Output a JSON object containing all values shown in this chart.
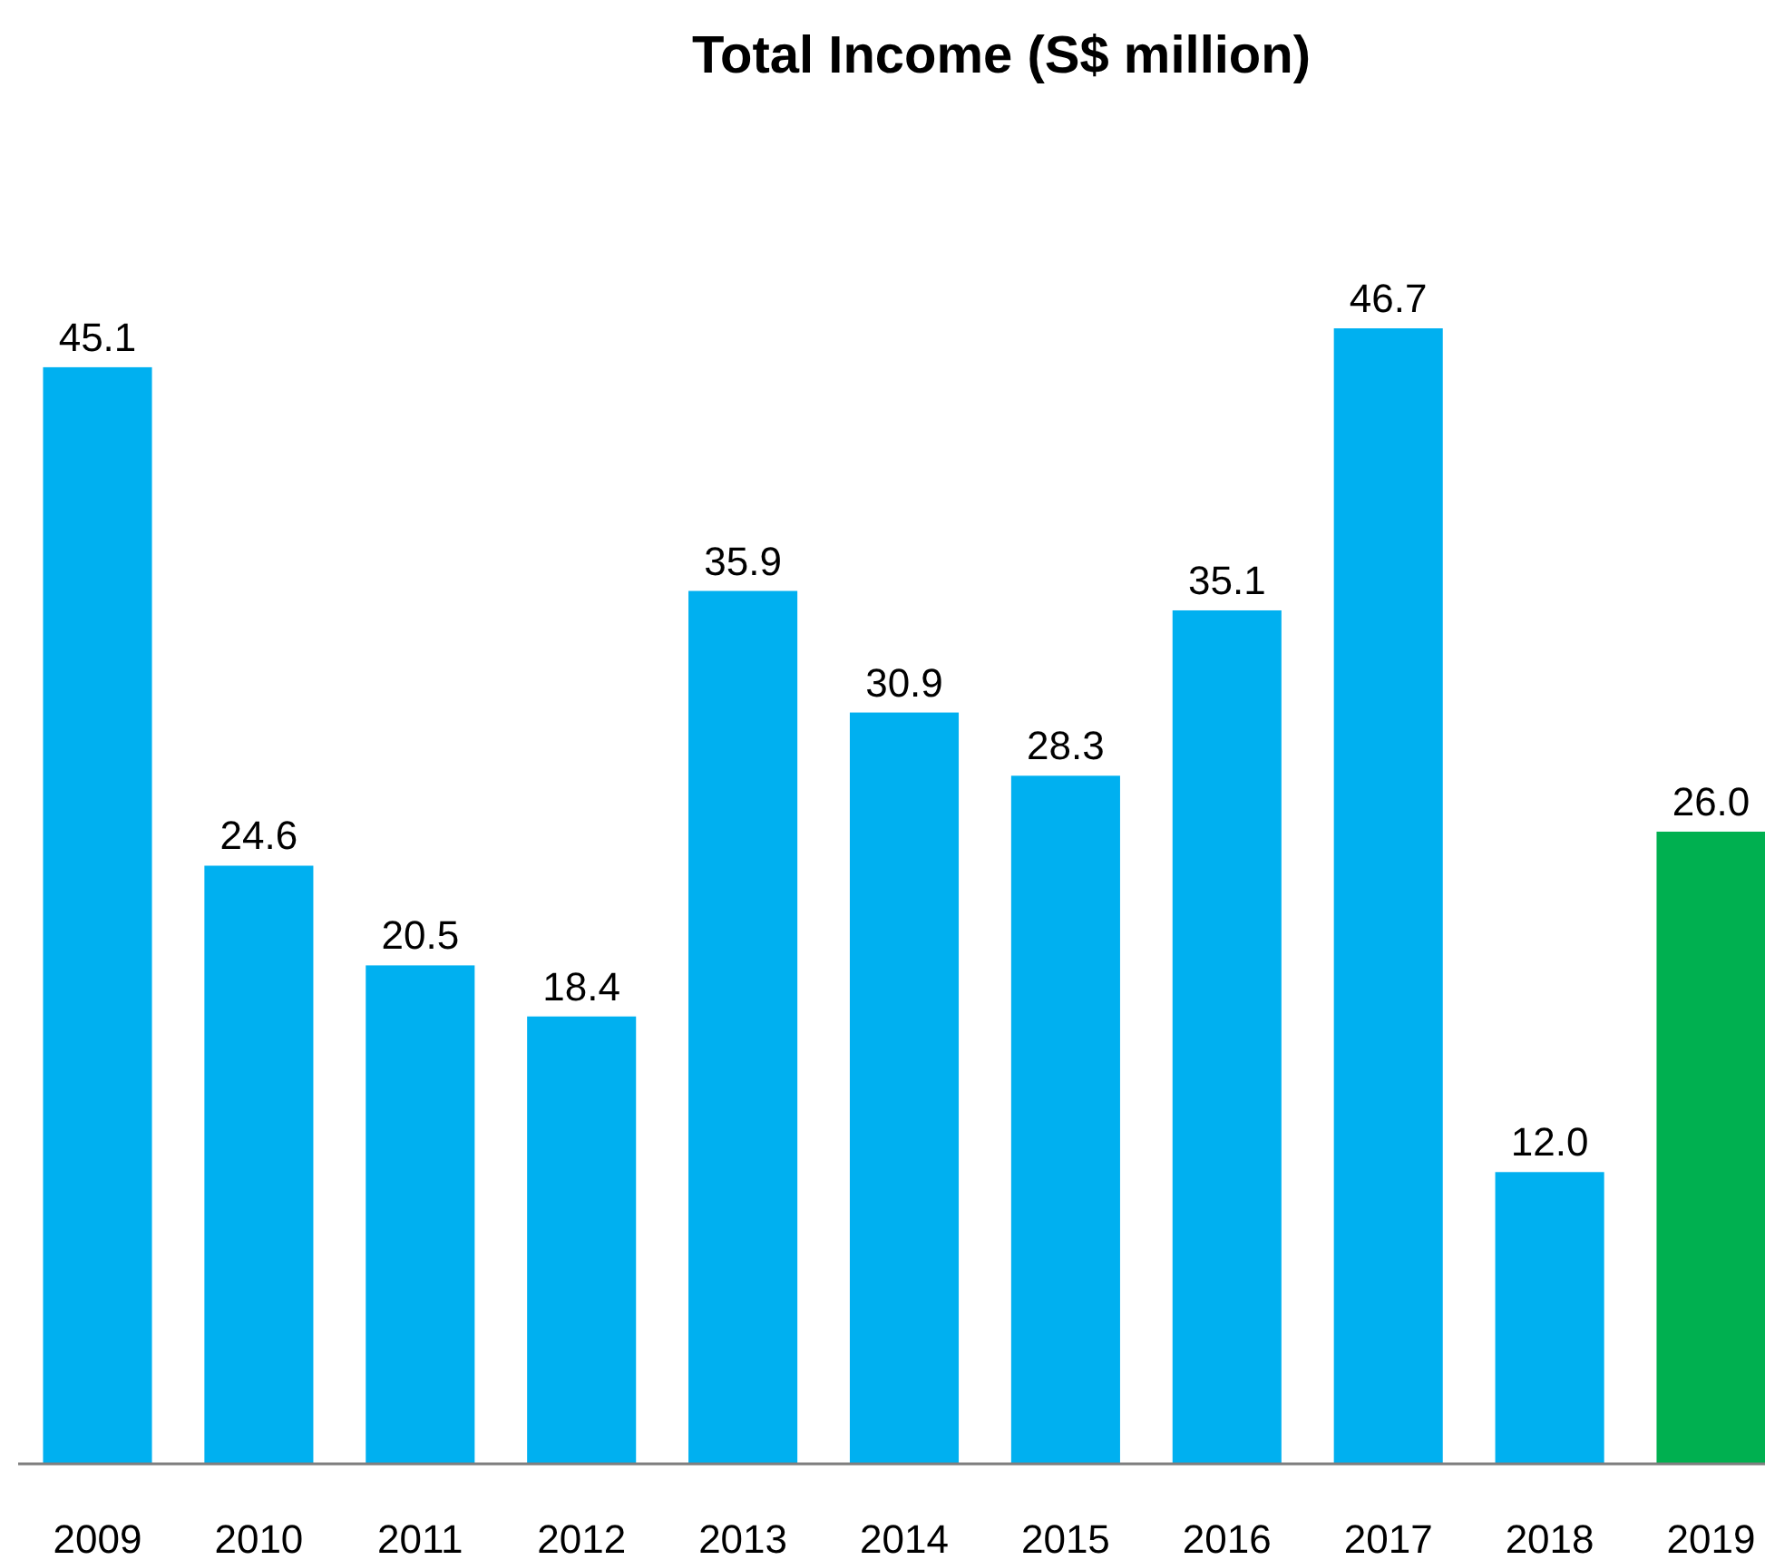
{
  "chart_data": {
    "type": "bar",
    "title": "Total Income (S$ million)",
    "categories": [
      "2009",
      "2010",
      "2011",
      "2012",
      "2013",
      "2014",
      "2015",
      "2016",
      "2017",
      "2018",
      "2019"
    ],
    "values": [
      45.1,
      24.6,
      20.5,
      18.4,
      35.9,
      30.9,
      28.3,
      35.1,
      46.7,
      12.0,
      26.0
    ],
    "value_labels": [
      "45.1",
      "24.6",
      "20.5",
      "18.4",
      "35.9",
      "30.9",
      "28.3",
      "35.1",
      "46.7",
      "12.0",
      "26.0"
    ],
    "colors": [
      "#00b0f0",
      "#00b0f0",
      "#00b0f0",
      "#00b0f0",
      "#00b0f0",
      "#00b0f0",
      "#00b0f0",
      "#00b0f0",
      "#00b0f0",
      "#00b0f0",
      "#00b050"
    ]
  }
}
